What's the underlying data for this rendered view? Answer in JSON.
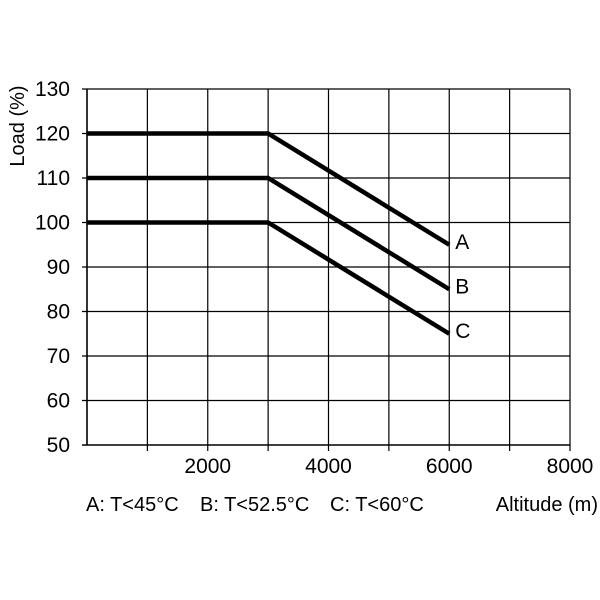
{
  "chart_data": {
    "type": "line",
    "title": "",
    "xlabel": "Altitude (m)",
    "ylabel": "Load (%)",
    "xlim": [
      0,
      8000
    ],
    "ylim": [
      50,
      130
    ],
    "x_ticks": [
      2000,
      4000,
      6000,
      8000
    ],
    "y_ticks": [
      50,
      60,
      70,
      80,
      90,
      100,
      110,
      120,
      130
    ],
    "x_tick_labels": [
      "2000",
      "4000",
      "6000",
      "8000"
    ],
    "y_tick_labels": [
      "50",
      "60",
      "70",
      "80",
      "90",
      "100",
      "110",
      "120",
      "130"
    ],
    "grid": true,
    "series": [
      {
        "name": "A",
        "x": [
          0,
          3000,
          6000
        ],
        "y": [
          120,
          120,
          95
        ]
      },
      {
        "name": "B",
        "x": [
          0,
          3000,
          6000
        ],
        "y": [
          110,
          110,
          85
        ]
      },
      {
        "name": "C",
        "x": [
          0,
          3000,
          6000
        ],
        "y": [
          100,
          100,
          75
        ]
      }
    ],
    "legend_note": {
      "A": "A: T<45°C",
      "B": "B: T<52.5°C",
      "C": "C: T<60°C"
    }
  }
}
